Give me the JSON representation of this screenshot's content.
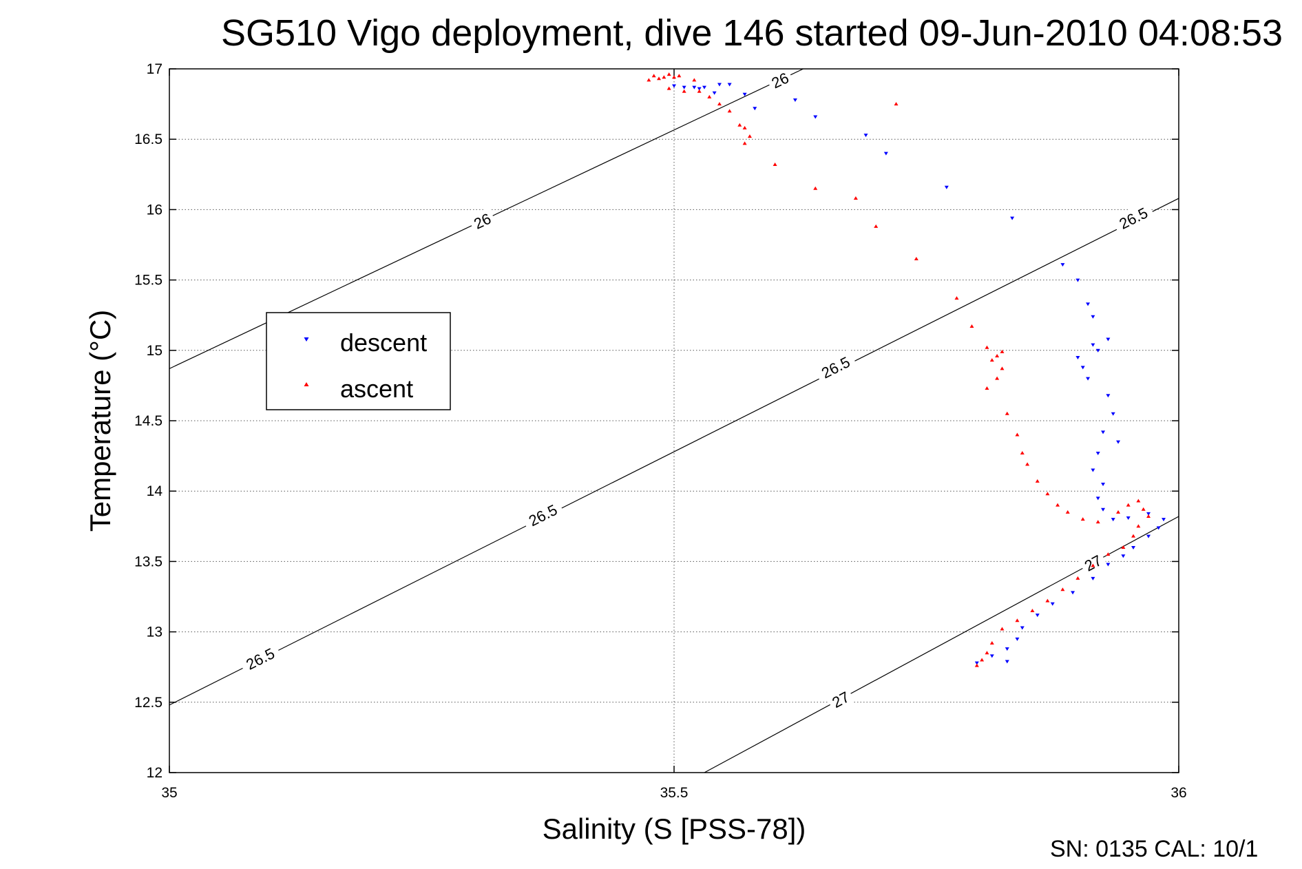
{
  "chart_data": {
    "type": "scatter",
    "title": "SG510 Vigo deployment, dive 146 started 09-Jun-2010 04:08:53",
    "xlabel": "Salinity (S [PSS-78])",
    "ylabel": "Temperature (°C)",
    "xlim": [
      35,
      36
    ],
    "ylim": [
      12,
      17
    ],
    "xticks": [
      "35",
      "35.5",
      "36"
    ],
    "yticks": [
      "12",
      "12.5",
      "13",
      "13.5",
      "14",
      "14.5",
      "15",
      "15.5",
      "16",
      "16.5",
      "17"
    ],
    "grid": true,
    "legend_position": "upper-left",
    "footer": "SN: 0135  CAL: 10/1",
    "contours": [
      {
        "label": "26",
        "points": [
          [
            35.0,
            14.87
          ],
          [
            35.628,
            17.0
          ]
        ],
        "label_positions": [
          [
            35.31,
            15.92
          ],
          [
            35.605,
            16.92
          ]
        ]
      },
      {
        "label": "26.5",
        "points": [
          [
            35.0,
            12.48
          ],
          [
            36.0,
            16.08
          ]
        ],
        "label_positions": [
          [
            35.09,
            12.81
          ],
          [
            35.37,
            13.83
          ],
          [
            35.66,
            14.88
          ],
          [
            35.955,
            15.94
          ]
        ]
      },
      {
        "label": "27",
        "points": [
          [
            35.53,
            12.0
          ],
          [
            36.0,
            13.82
          ]
        ],
        "label_positions": [
          [
            35.665,
            12.52
          ],
          [
            35.915,
            13.49
          ]
        ]
      }
    ],
    "series": [
      {
        "name": "descent",
        "color": "#0000ff",
        "marker": "triangle-down",
        "points": [
          [
            35.5,
            16.88
          ],
          [
            35.51,
            16.87
          ],
          [
            35.52,
            16.87
          ],
          [
            35.525,
            16.86
          ],
          [
            35.53,
            16.87
          ],
          [
            35.545,
            16.89
          ],
          [
            35.54,
            16.83
          ],
          [
            35.555,
            16.89
          ],
          [
            35.57,
            16.82
          ],
          [
            35.58,
            16.72
          ],
          [
            35.62,
            16.78
          ],
          [
            35.64,
            16.66
          ],
          [
            35.69,
            16.53
          ],
          [
            35.71,
            16.4
          ],
          [
            35.77,
            16.16
          ],
          [
            35.835,
            15.94
          ],
          [
            35.885,
            15.61
          ],
          [
            35.9,
            15.5
          ],
          [
            35.91,
            15.33
          ],
          [
            35.915,
            15.24
          ],
          [
            35.93,
            15.08
          ],
          [
            35.915,
            15.04
          ],
          [
            35.92,
            15.0
          ],
          [
            35.9,
            14.95
          ],
          [
            35.905,
            14.88
          ],
          [
            35.91,
            14.8
          ],
          [
            35.93,
            14.68
          ],
          [
            35.935,
            14.55
          ],
          [
            35.925,
            14.42
          ],
          [
            35.94,
            14.35
          ],
          [
            35.92,
            14.27
          ],
          [
            35.915,
            14.15
          ],
          [
            35.925,
            14.05
          ],
          [
            35.92,
            13.95
          ],
          [
            35.925,
            13.87
          ],
          [
            35.935,
            13.8
          ],
          [
            35.95,
            13.81
          ],
          [
            35.97,
            13.84
          ],
          [
            35.985,
            13.8
          ],
          [
            35.98,
            13.74
          ],
          [
            35.97,
            13.68
          ],
          [
            35.955,
            13.6
          ],
          [
            35.945,
            13.54
          ],
          [
            35.93,
            13.48
          ],
          [
            35.915,
            13.38
          ],
          [
            35.895,
            13.28
          ],
          [
            35.875,
            13.2
          ],
          [
            35.86,
            13.12
          ],
          [
            35.845,
            13.03
          ],
          [
            35.84,
            12.95
          ],
          [
            35.83,
            12.88
          ],
          [
            35.815,
            12.83
          ],
          [
            35.8,
            12.78
          ],
          [
            35.83,
            12.79
          ]
        ]
      },
      {
        "name": "ascent",
        "color": "#ff0000",
        "marker": "triangle-up",
        "points": [
          [
            35.475,
            16.92
          ],
          [
            35.48,
            16.95
          ],
          [
            35.485,
            16.93
          ],
          [
            35.49,
            16.94
          ],
          [
            35.495,
            16.96
          ],
          [
            35.5,
            16.94
          ],
          [
            35.505,
            16.95
          ],
          [
            35.495,
            16.86
          ],
          [
            35.51,
            16.84
          ],
          [
            35.52,
            16.92
          ],
          [
            35.525,
            16.84
          ],
          [
            35.535,
            16.8
          ],
          [
            35.545,
            16.75
          ],
          [
            35.555,
            16.7
          ],
          [
            35.565,
            16.6
          ],
          [
            35.57,
            16.58
          ],
          [
            35.575,
            16.52
          ],
          [
            35.57,
            16.47
          ],
          [
            35.6,
            16.32
          ],
          [
            35.64,
            16.15
          ],
          [
            35.68,
            16.08
          ],
          [
            35.7,
            15.88
          ],
          [
            35.72,
            16.75
          ],
          [
            35.74,
            15.65
          ],
          [
            35.78,
            15.37
          ],
          [
            35.795,
            15.17
          ],
          [
            35.81,
            15.02
          ],
          [
            35.815,
            14.93
          ],
          [
            35.82,
            14.96
          ],
          [
            35.825,
            14.99
          ],
          [
            35.81,
            14.73
          ],
          [
            35.82,
            14.8
          ],
          [
            35.825,
            14.87
          ],
          [
            35.83,
            14.55
          ],
          [
            35.84,
            14.4
          ],
          [
            35.845,
            14.27
          ],
          [
            35.85,
            14.19
          ],
          [
            35.86,
            14.07
          ],
          [
            35.87,
            13.98
          ],
          [
            35.88,
            13.9
          ],
          [
            35.89,
            13.85
          ],
          [
            35.905,
            13.8
          ],
          [
            35.92,
            13.78
          ],
          [
            35.94,
            13.85
          ],
          [
            35.95,
            13.9
          ],
          [
            35.96,
            13.93
          ],
          [
            35.965,
            13.87
          ],
          [
            35.97,
            13.82
          ],
          [
            35.96,
            13.75
          ],
          [
            35.955,
            13.68
          ],
          [
            35.945,
            13.6
          ],
          [
            35.93,
            13.55
          ],
          [
            35.915,
            13.47
          ],
          [
            35.9,
            13.38
          ],
          [
            35.885,
            13.3
          ],
          [
            35.87,
            13.22
          ],
          [
            35.855,
            13.15
          ],
          [
            35.84,
            13.08
          ],
          [
            35.825,
            13.02
          ],
          [
            35.815,
            12.92
          ],
          [
            35.81,
            12.85
          ],
          [
            35.805,
            12.8
          ],
          [
            35.8,
            12.76
          ]
        ]
      }
    ]
  },
  "legend": {
    "descent": "descent",
    "ascent": "ascent"
  }
}
